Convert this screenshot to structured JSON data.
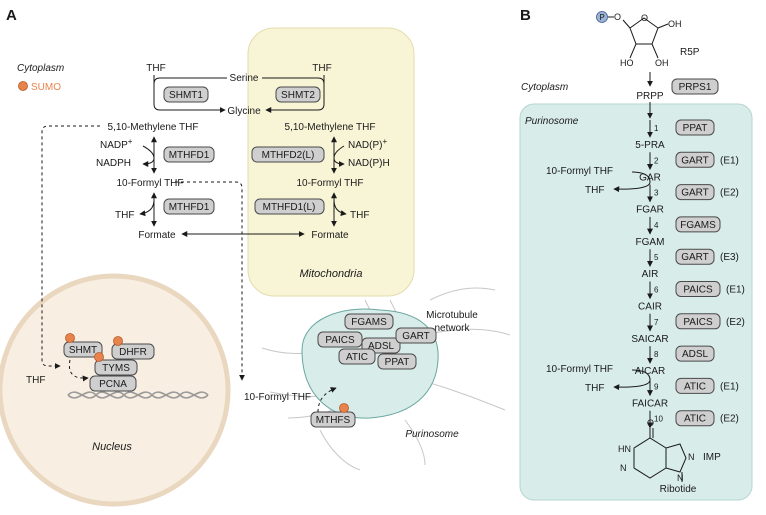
{
  "panel_a": {
    "label": "A",
    "legend": {
      "compartment": "Cytoplasm",
      "sumo": "SUMO"
    },
    "compartments": {
      "mito": "Mitochondria",
      "nucleus": "Nucleus",
      "purinosome": "Purinosome",
      "microtubule": "Microtubule",
      "network": "network"
    },
    "metabolites": {
      "thf_left": "THF",
      "thf_right": "THF",
      "serine": "Serine",
      "glycine": "Glycine",
      "mthf_left": "5,10-Methylene THF",
      "mthf_right": "5,10-Methylene THF",
      "nadp_plus": "NADP",
      "nadph": "NADPH",
      "nadp_r": "NAD(P)",
      "nadph_r": "NAD(P)H",
      "fthf_left": "10-Formyl THF",
      "fthf_right": "10-Formyl THF",
      "thf_l3": "THF",
      "thf_r3": "THF",
      "formate_left": "Formate",
      "formate_right": "Formate",
      "thf_nucleus": "THF",
      "fthf_puri": "10-Formyl THF",
      "plus": "+"
    },
    "enzymes": {
      "shmt1": "SHMT1",
      "shmt2": "SHMT2",
      "mthfd1_a": "MTHFD1",
      "mthfd2l": "MTHFD2(L)",
      "mthfd1_b": "MTHFD1",
      "mthfd1l": "MTHFD1(L)",
      "shmt": "SHMT",
      "dhfr": "DHFR",
      "tyms": "TYMS",
      "pcna": "PCNA",
      "fgams": "FGAMS",
      "paics": "PAICS",
      "adsl": "ADSL",
      "gart": "GART",
      "atic": "ATIC",
      "ppat": "PPAT",
      "mthfs": "MTHFS"
    }
  },
  "panel_b": {
    "label": "B",
    "cytoplasm": "Cytoplasm",
    "purinosome": "Purinosome",
    "r5p": "R5P",
    "phospho": "P",
    "prpp": "PRPP",
    "prps1": "PRPS1",
    "ribotide": "Ribotide",
    "imp": "IMP",
    "fthf_1": "10-Formyl THF",
    "thf_1": "THF",
    "fthf_2": "10-Formyl THF",
    "thf_2": "THF",
    "steps": [
      {
        "num": "1",
        "product": "5-PRA",
        "enzyme": "PPAT",
        "suffix": ""
      },
      {
        "num": "2",
        "product": "GAR",
        "enzyme": "GART",
        "suffix": "(E1)"
      },
      {
        "num": "3",
        "product": "FGAR",
        "enzyme": "GART",
        "suffix": "(E2)"
      },
      {
        "num": "4",
        "product": "FGAM",
        "enzyme": "FGAMS",
        "suffix": ""
      },
      {
        "num": "5",
        "product": "AIR",
        "enzyme": "GART",
        "suffix": "(E3)"
      },
      {
        "num": "6",
        "product": "CAIR",
        "enzyme": "PAICS",
        "suffix": "(E1)"
      },
      {
        "num": "7",
        "product": "SAICAR",
        "enzyme": "PAICS",
        "suffix": "(E2)"
      },
      {
        "num": "8",
        "product": "AICAR",
        "enzyme": "ADSL",
        "suffix": ""
      },
      {
        "num": "9",
        "product": "FAICAR",
        "enzyme": "ATIC",
        "suffix": "(E1)"
      },
      {
        "num": "10",
        "product": "",
        "enzyme": "ATIC",
        "suffix": "(E2)"
      }
    ]
  },
  "colors": {
    "mito_bg": "#f8f4d6",
    "nucleus_bg": "#f8efe2",
    "nucleus_border": "#ead7c0",
    "purinosome_bg": "#d8ecea",
    "sumo": "#e9834c",
    "enzyme_fill": "#cfcfcf"
  }
}
